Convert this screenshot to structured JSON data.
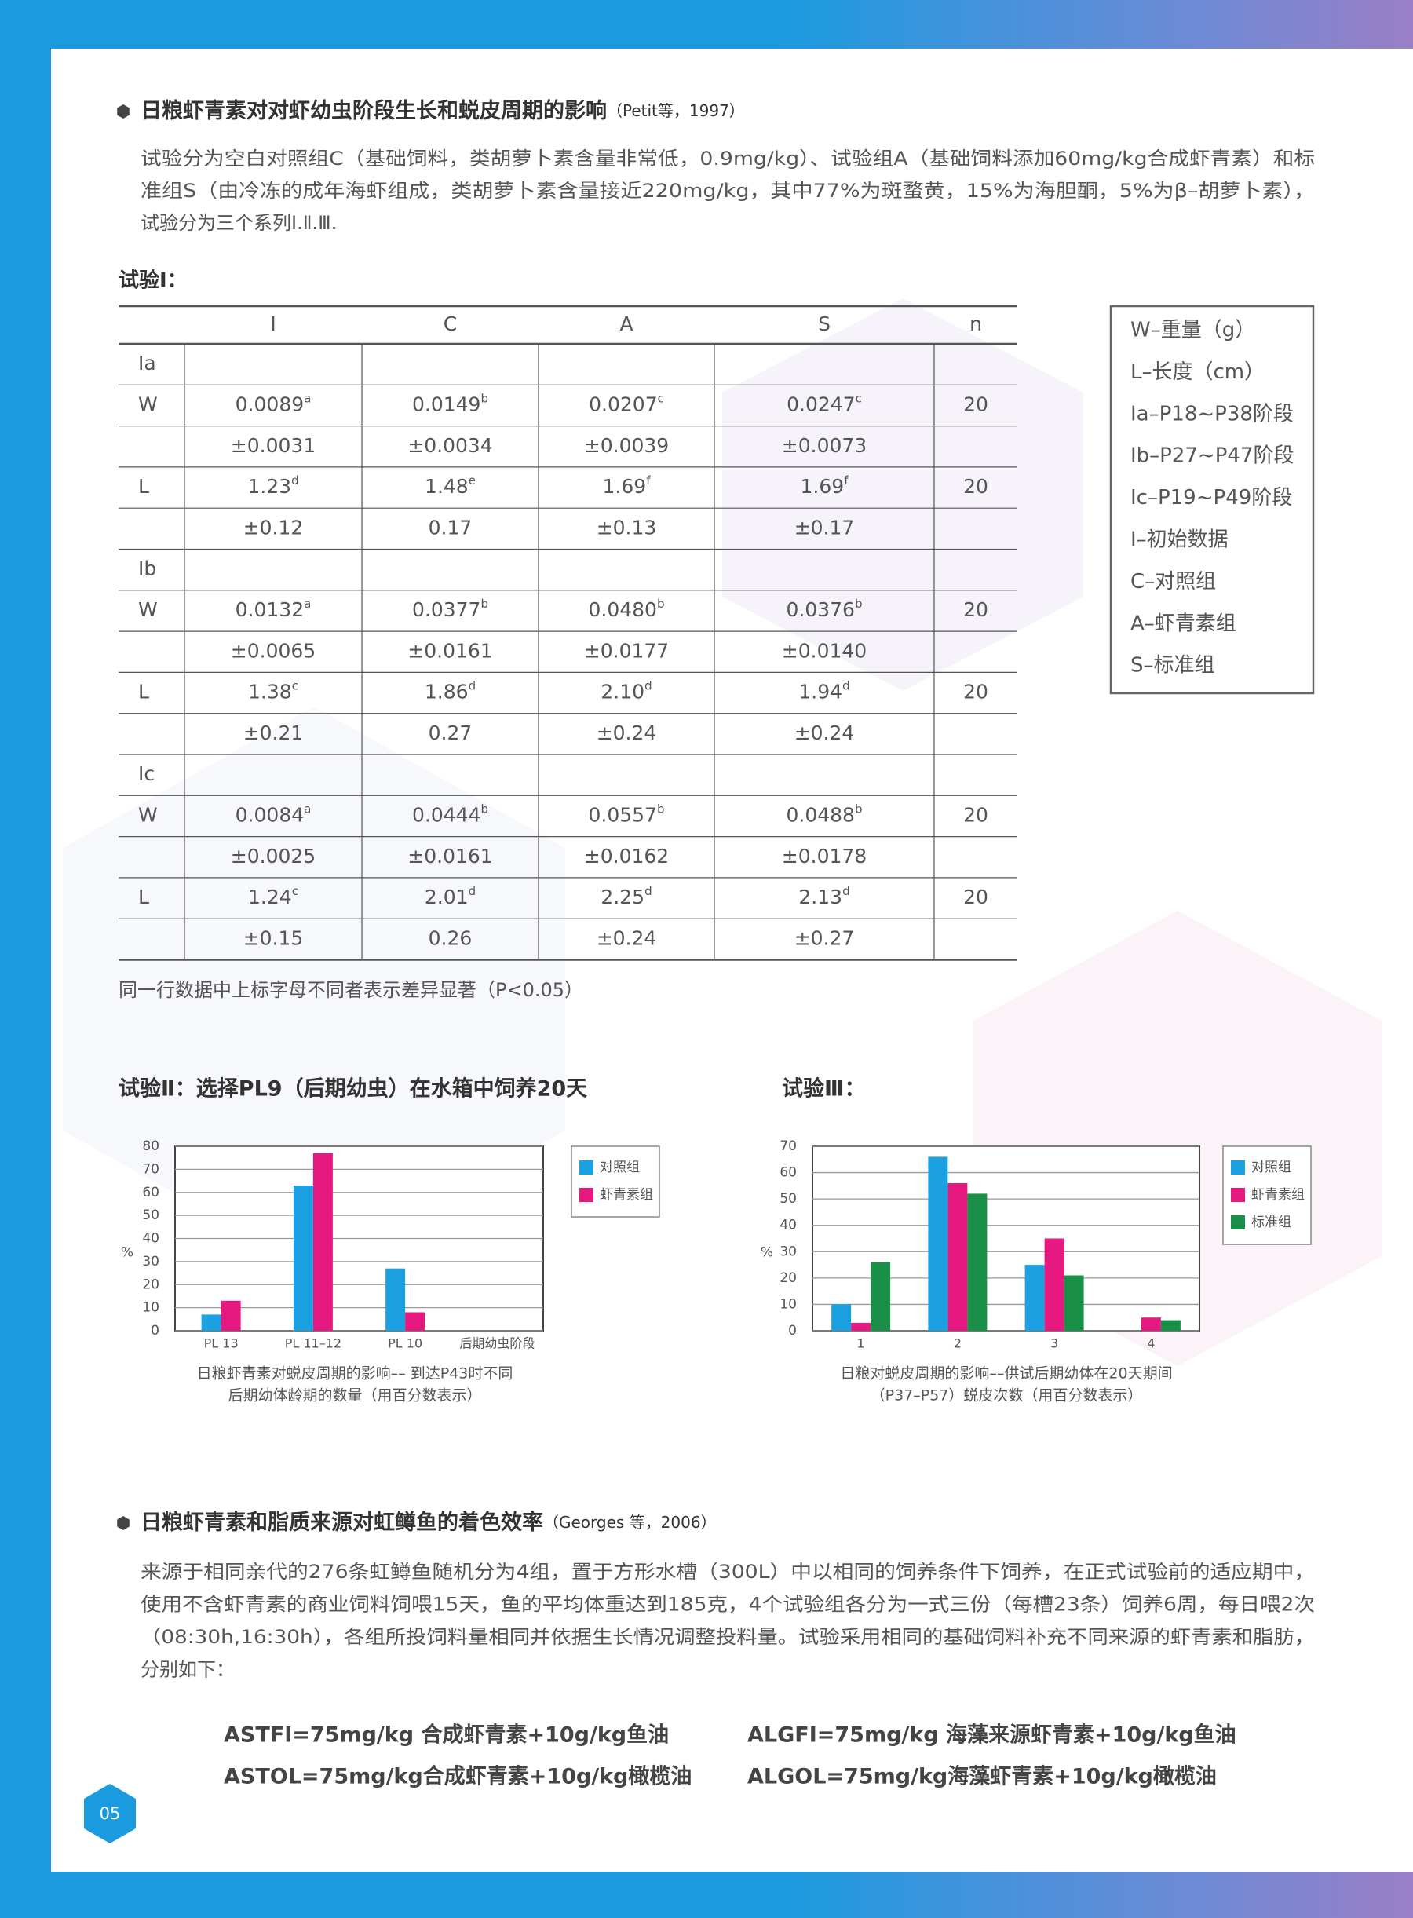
{
  "page_number": "05",
  "section1": {
    "title": "日粮虾青素对对虾幼虫阶段生长和蜕皮周期的影响",
    "citation": "（Petit等，1997）",
    "paragraph": [
      "试验分为空白对照组C（基础饲料，类胡萝卜素含量非常低，0.9mg/kg）、试验组A（基础饲料添加60mg/kg合成虾青素）和标",
      "准组S（由冷冻的成年海虾组成，类胡萝卜素含量接近220mg/kg，其中77%为斑蝥黄，15%为海胆酮，5%为β–胡萝卜素），",
      "试验分为三个系列Ⅰ.Ⅱ.Ⅲ."
    ]
  },
  "trial1": {
    "title": "试验Ⅰ：",
    "table": {
      "headers": [
        "I",
        "C",
        "A",
        "S",
        "n"
      ],
      "rows": [
        [
          "Ia",
          null,
          null,
          null,
          null,
          null
        ],
        [
          "W",
          {
            "text": "0.0089",
            "sup": "a"
          },
          {
            "text": "0.0149",
            "sup": "b"
          },
          {
            "text": "0.0207",
            "sup": "c"
          },
          {
            "text": "0.0247",
            "sup": "c"
          },
          "20"
        ],
        [
          null,
          "±0.0031",
          "±0.0034",
          "±0.0039",
          "±0.0073",
          null
        ],
        [
          "L",
          {
            "text": "1.23",
            "sup": "d"
          },
          {
            "text": "1.48",
            "sup": "e"
          },
          {
            "text": "1.69",
            "sup": "f"
          },
          {
            "text": "1.69",
            "sup": "f"
          },
          "20"
        ],
        [
          null,
          "±0.12",
          "0.17",
          "±0.13",
          "±0.17",
          null
        ],
        [
          "Ib",
          null,
          null,
          null,
          null,
          null
        ],
        [
          "W",
          {
            "text": "0.0132",
            "sup": "a"
          },
          {
            "text": "0.0377",
            "sup": "b"
          },
          {
            "text": "0.0480",
            "sup": "b"
          },
          {
            "text": "0.0376",
            "sup": "b"
          },
          "20"
        ],
        [
          null,
          "±0.0065",
          "±0.0161",
          "±0.0177",
          "±0.0140",
          null
        ],
        [
          "L",
          {
            "text": "1.38",
            "sup": "c"
          },
          {
            "text": "1.86",
            "sup": "d"
          },
          {
            "text": "2.10",
            "sup": "d"
          },
          {
            "text": "1.94",
            "sup": "d"
          },
          "20"
        ],
        [
          null,
          "±0.21",
          "0.27",
          "±0.24",
          "±0.24",
          null
        ],
        [
          "Ic",
          null,
          null,
          null,
          null,
          null
        ],
        [
          "W",
          {
            "text": "0.0084",
            "sup": "a"
          },
          {
            "text": "0.0444",
            "sup": "b"
          },
          {
            "text": "0.0557",
            "sup": "b"
          },
          {
            "text": "0.0488",
            "sup": "b"
          },
          "20"
        ],
        [
          null,
          "±0.0025",
          "±0.0161",
          "±0.0162",
          "±0.0178",
          null
        ],
        [
          "L",
          {
            "text": "1.24",
            "sup": "c"
          },
          {
            "text": "2.01",
            "sup": "d"
          },
          {
            "text": "2.25",
            "sup": "d"
          },
          {
            "text": "2.13",
            "sup": "d"
          },
          "20"
        ],
        [
          null,
          "±0.15",
          "0.26",
          "±0.24",
          "±0.27",
          null
        ]
      ]
    },
    "note": "同一行数据中上标字母不同者表示差异显著（P<0.05）",
    "legend": [
      "W–重量（g）",
      "L–长度（cm）",
      "Ia–P18~P38阶段",
      "Ib–P27~P47阶段",
      "Ic–P19~P49阶段",
      "I–初始数据",
      "C–对照组",
      "A–虾青素组",
      "S–标准组"
    ]
  },
  "chart_data": [
    {
      "type": "bar",
      "title": "试验Ⅱ：选择PL9（后期幼虫）在水箱中饲养20天",
      "ylabel": "%",
      "categories": [
        "PL 13",
        "PL 11–12",
        "PL 10",
        "后期幼虫阶段"
      ],
      "series": [
        {
          "name": "对照组",
          "color": "#1ba1e2",
          "values": [
            7,
            63,
            27,
            0
          ]
        },
        {
          "name": "虾青素组",
          "color": "#e5197f",
          "values": [
            13,
            77,
            8,
            0
          ]
        }
      ],
      "ylim": [
        0,
        80
      ],
      "yticks": [
        0,
        10,
        20,
        30,
        40,
        50,
        60,
        70,
        80
      ],
      "grid": true,
      "caption": [
        "日粮虾青素对蜕皮周期的影响–– 到达P43时不同",
        "后期幼体龄期的数量（用百分数表示）"
      ]
    },
    {
      "type": "bar",
      "title": "试验Ⅲ：",
      "ylabel": "%",
      "categories": [
        "1",
        "2",
        "3",
        "4"
      ],
      "series": [
        {
          "name": "对照组",
          "color": "#1ba1e2",
          "values": [
            10,
            66,
            25,
            0
          ]
        },
        {
          "name": "虾青素组",
          "color": "#e5197f",
          "values": [
            3,
            56,
            35,
            5
          ]
        },
        {
          "name": "标准组",
          "color": "#1a8f47",
          "values": [
            26,
            52,
            21,
            4
          ]
        }
      ],
      "ylim": [
        0,
        70
      ],
      "yticks": [
        0,
        10,
        20,
        30,
        40,
        50,
        60,
        70
      ],
      "grid": true,
      "caption": [
        "日粮对蜕皮周期的影响––供试后期幼体在20天期间",
        "（P37–P57）蜕皮次数（用百分数表示）"
      ]
    }
  ],
  "section2": {
    "title": "日粮虾青素和脂质来源对虹鳟鱼的着色效率",
    "citation": "（Georges 等，2006）",
    "paragraph": [
      "来源于相同亲代的276条虹鳟鱼随机分为4组，置于方形水槽（300L）中以相同的饲养条件下饲养，在正式试验前的适应期中，",
      "使用不含虾青素的商业饲料饲喂15天，鱼的平均体重达到185克，4个试验组各分为一式三份（每槽23条）饲养6周，每日喂2次",
      "（08:30h,16:30h），各组所投饲料量相同并依据生长情况调整投料量。试验采用相同的基础饲料补充不同来源的虾青素和脂肪，",
      "分别如下："
    ],
    "formulas": [
      "ASTFI=75mg/kg 合成虾青素+10g/kg鱼油",
      "ALGFI=75mg/kg 海藻来源虾青素+10g/kg鱼油",
      "ASTOL=75mg/kg合成虾青素+10g/kg橄榄油",
      "ALGOL=75mg/kg海藻虾青素+10g/kg橄榄油"
    ]
  }
}
